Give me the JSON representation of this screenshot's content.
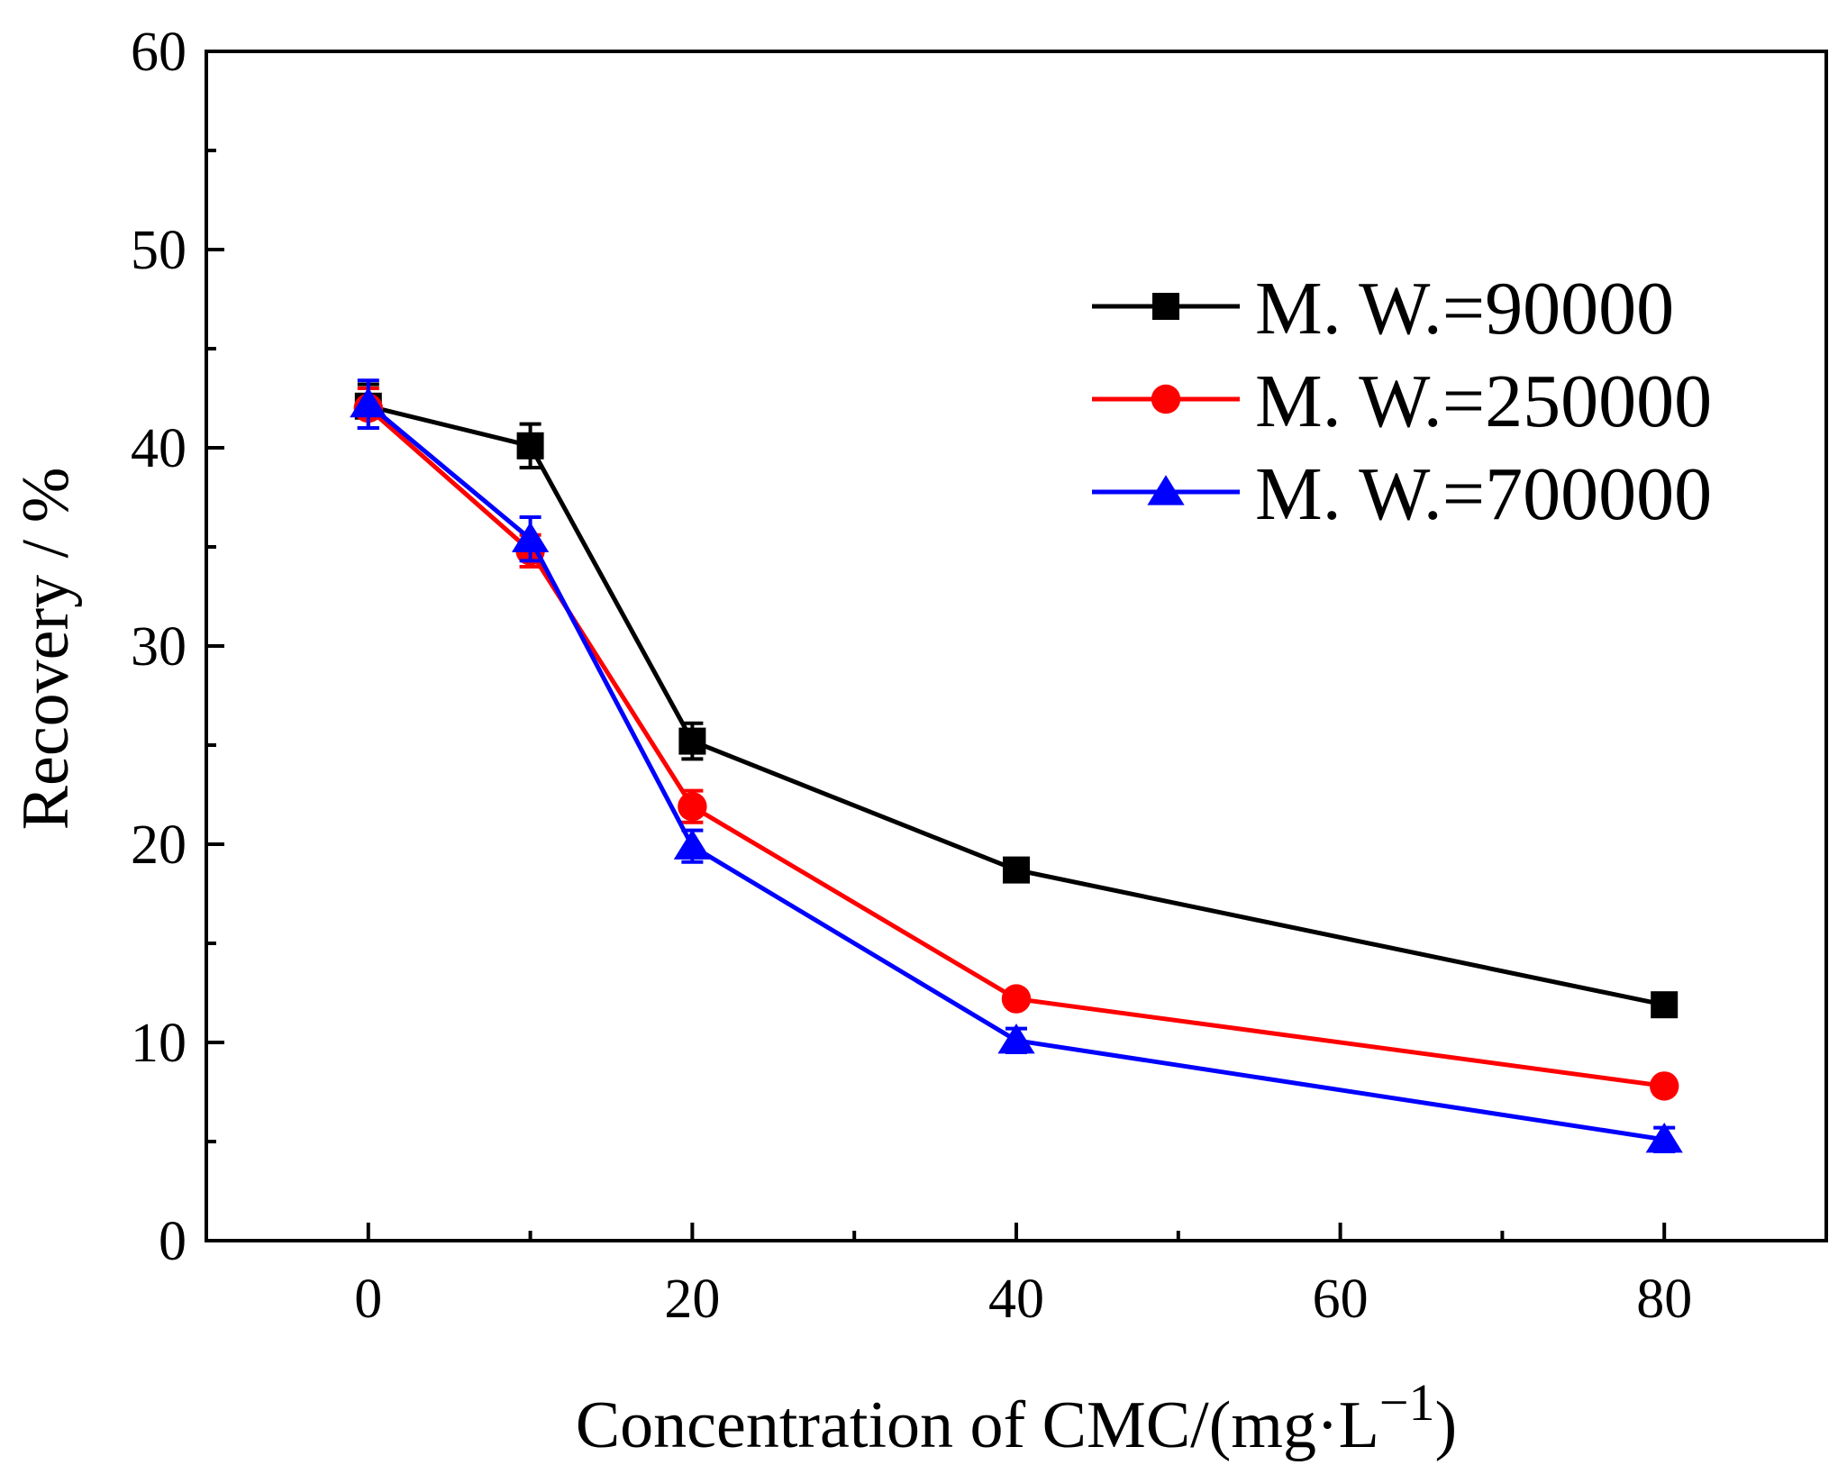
{
  "chart_data": {
    "type": "line",
    "title": "",
    "xlabel": "Concentration of CMC/(mg·L",
    "xlabel_sup": "−1",
    "xlabel_close": ")",
    "ylabel": "Recovery / %",
    "xlim": [
      -10,
      90
    ],
    "ylim": [
      0,
      60
    ],
    "xticks": [
      0,
      20,
      40,
      60,
      80
    ],
    "yticks": [
      0,
      10,
      20,
      30,
      40,
      50,
      60
    ],
    "xtick_labels": [
      "0",
      "20",
      "40",
      "60",
      "80"
    ],
    "ytick_labels": [
      "0",
      "10",
      "20",
      "30",
      "40",
      "50",
      "60"
    ],
    "x_minor_ticks": [
      10,
      30,
      50,
      70
    ],
    "y_minor_ticks": [
      5,
      15,
      25,
      35,
      45,
      55
    ],
    "grid": false,
    "legend_position": "top-right",
    "x": [
      0,
      10,
      20,
      40,
      80
    ],
    "series": [
      {
        "name": "M. W.=90000",
        "color": "#000000",
        "marker": "square",
        "values": [
          42.1,
          40.1,
          25.2,
          18.7,
          11.9
        ],
        "errors": [
          1.1,
          1.1,
          0.9,
          0.4,
          0.4
        ]
      },
      {
        "name": "M. W.=250000",
        "color": "#ff0000",
        "marker": "circle",
        "values": [
          42.0,
          34.8,
          21.9,
          12.2,
          7.8
        ],
        "errors": [
          1.0,
          0.8,
          0.8,
          0.4,
          0.4
        ]
      },
      {
        "name": "M. W.=700000",
        "color": "#0000ff",
        "marker": "triangle",
        "values": [
          42.2,
          35.4,
          19.9,
          10.1,
          5.1
        ],
        "errors": [
          1.2,
          1.1,
          0.8,
          0.6,
          0.6
        ]
      }
    ]
  }
}
